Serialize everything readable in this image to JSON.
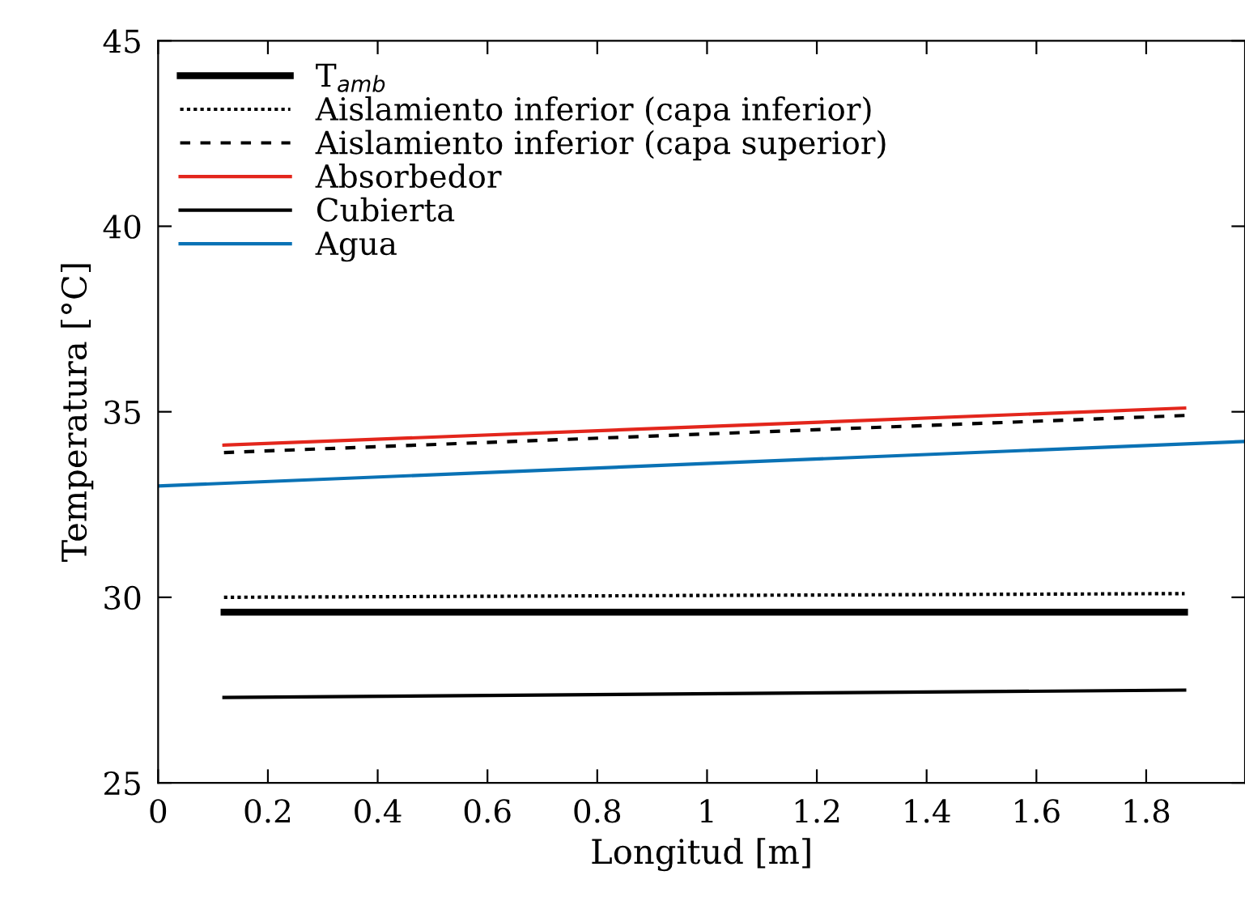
{
  "chart_data": {
    "type": "line",
    "xlabel": "Longitud [m]",
    "ylabel": "Temperatura [°C]",
    "xlim": [
      0,
      1.98
    ],
    "xticks": [
      0,
      0.2,
      0.4,
      0.6,
      0.8,
      1,
      1.2,
      1.4,
      1.6,
      1.8
    ],
    "ylim": [
      25,
      45
    ],
    "yticks": [
      25,
      30,
      35,
      40,
      45
    ],
    "grid": false,
    "legend": "top left",
    "marker": "none",
    "series": [
      {
        "name": "T$_{amb}$",
        "color": "#000000",
        "line_style": "solid",
        "x": [
          0.12,
          1.87
        ],
        "values": [
          29.6,
          29.6
        ]
      },
      {
        "name": "Aislamiento inferior (capa inferior)",
        "color": "#000000",
        "line_style": "dotted",
        "x": [
          0.12,
          1.87
        ],
        "values": [
          30.0,
          30.1
        ]
      },
      {
        "name": "Aislamiento inferior (capa superior)",
        "color": "#000000",
        "line_style": "dashed",
        "x": [
          0.12,
          1.87
        ],
        "values": [
          33.9,
          34.9
        ]
      },
      {
        "name": "Absorbedor",
        "color": "#e3261c",
        "line_style": "solid",
        "x": [
          0.12,
          1.87
        ],
        "values": [
          34.1,
          35.1
        ]
      },
      {
        "name": "Cubierta",
        "color": "#000000",
        "line_style": "solid",
        "x": [
          0.12,
          1.87
        ],
        "values": [
          27.3,
          27.5
        ]
      },
      {
        "name": "Agua",
        "color": "#0a72b5",
        "line_style": "solid",
        "x": [
          0,
          1.98
        ],
        "values": [
          33.0,
          34.2
        ]
      }
    ]
  }
}
